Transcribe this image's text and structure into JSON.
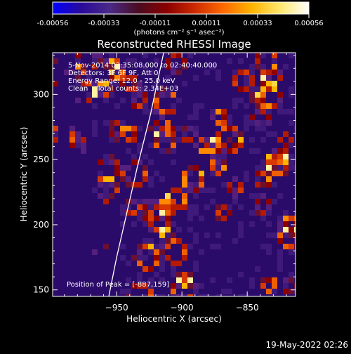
{
  "colorbar": {
    "ticks": [
      "-0.00056",
      "-0.00033",
      "-0.00011",
      "0.00011",
      "0.00033",
      "0.00056"
    ],
    "stops": [
      "#0000ff",
      "#2a0a9a",
      "#4b2a88",
      "#4a0c22",
      "#8a0000",
      "#cc2a00",
      "#ff6a00",
      "#ffb400",
      "#ffe870",
      "#ffffff"
    ]
  },
  "chart_data": {
    "type": "heatmap",
    "title": "Reconstructed RHESSI Image",
    "colorbar_label": "(photons cm⁻² s⁻¹ asec⁻²)",
    "xlabel": "Heliocentric X (arcsec)",
    "ylabel": "Heliocentric Y (arcsec)",
    "xlim": [
      -999,
      -813
    ],
    "ylim": [
      145,
      332
    ],
    "xticks": [
      -950,
      -900,
      -850
    ],
    "yticks": [
      150,
      200,
      250,
      300
    ],
    "zlim": [
      -0.00056,
      0.00056
    ],
    "annotations": [
      "5-Nov-2014 02:35:08.000 to 02:40:40.000",
      "Detectors: 3F 6F 9F, Att 0",
      "Energy Range: 12.0 - 25.0 keV",
      "Clean    Total counts: 2.34E+03"
    ],
    "peak_label": "Position of Peak = [-887,159]",
    "limb_curve": [
      [
        -956,
        145
      ],
      [
        -950,
        175
      ],
      [
        -942,
        210
      ],
      [
        -934,
        245
      ],
      [
        -924,
        285
      ],
      [
        -914,
        332
      ]
    ]
  },
  "footer": {
    "date": "19-May-2022 02:26"
  }
}
